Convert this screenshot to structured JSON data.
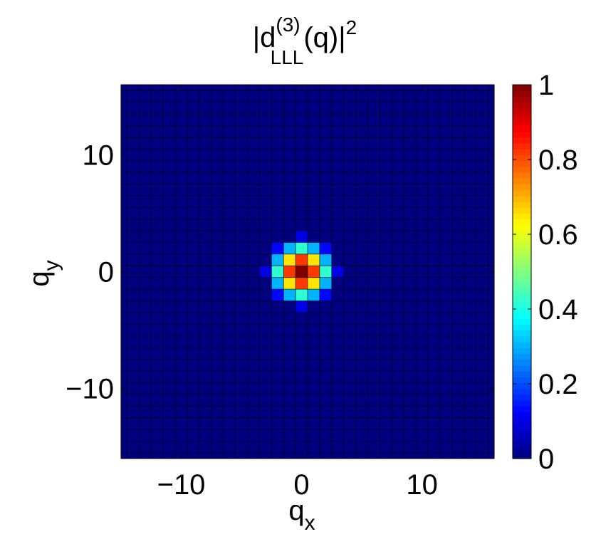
{
  "chart_data": {
    "type": "heatmap",
    "title": "|d^(3)_LLL(q)|^2",
    "title_parts": {
      "lead": "|d",
      "superscript": "(3)",
      "subscript": "LLL",
      "middle": "(q)|",
      "power": "2"
    },
    "xlabel": {
      "base": "q",
      "sub": "x"
    },
    "ylabel": {
      "base": "q",
      "sub": "y"
    },
    "xlim": [
      -15,
      16
    ],
    "ylim": [
      -16,
      16
    ],
    "xticks": [
      -10,
      0,
      10
    ],
    "xtick_labels": [
      "−10",
      "0",
      "10"
    ],
    "yticks": [
      -10,
      0,
      10
    ],
    "ytick_labels": [
      "−10",
      "0",
      "10"
    ],
    "colormap": "jet",
    "clim": [
      0,
      1
    ],
    "colorbar_ticks": [
      0,
      0.2,
      0.4,
      0.6,
      0.8,
      1
    ],
    "colorbar_tick_labels": [
      "0",
      "0.2",
      "0.4",
      "0.6",
      "0.8",
      "1"
    ],
    "grid_step": 1,
    "background_value": 0,
    "cells": [
      {
        "qx": 0,
        "qy": 0,
        "v": 1.0
      },
      {
        "qx": 0,
        "qy": 1,
        "v": 0.82
      },
      {
        "qx": 1,
        "qy": 0,
        "v": 0.82
      },
      {
        "qx": -1,
        "qy": 0,
        "v": 0.82
      },
      {
        "qx": 0,
        "qy": -1,
        "v": 0.82
      },
      {
        "qx": 1,
        "qy": 1,
        "v": 0.65
      },
      {
        "qx": -1,
        "qy": 1,
        "v": 0.65
      },
      {
        "qx": 1,
        "qy": -1,
        "v": 0.65
      },
      {
        "qx": -1,
        "qy": -1,
        "v": 0.65
      },
      {
        "qx": 0,
        "qy": 2,
        "v": 0.42
      },
      {
        "qx": 2,
        "qy": 0,
        "v": 0.42
      },
      {
        "qx": -2,
        "qy": 0,
        "v": 0.42
      },
      {
        "qx": 0,
        "qy": -2,
        "v": 0.42
      },
      {
        "qx": 1,
        "qy": 2,
        "v": 0.3
      },
      {
        "qx": -1,
        "qy": 2,
        "v": 0.3
      },
      {
        "qx": 2,
        "qy": 1,
        "v": 0.3
      },
      {
        "qx": -2,
        "qy": 1,
        "v": 0.3
      },
      {
        "qx": 2,
        "qy": -1,
        "v": 0.3
      },
      {
        "qx": -2,
        "qy": -1,
        "v": 0.3
      },
      {
        "qx": 1,
        "qy": -2,
        "v": 0.3
      },
      {
        "qx": -1,
        "qy": -2,
        "v": 0.3
      },
      {
        "qx": 2,
        "qy": 2,
        "v": 0.13
      },
      {
        "qx": -2,
        "qy": 2,
        "v": 0.13
      },
      {
        "qx": 2,
        "qy": -2,
        "v": 0.13
      },
      {
        "qx": -2,
        "qy": -2,
        "v": 0.13
      },
      {
        "qx": 0,
        "qy": 3,
        "v": 0.1
      },
      {
        "qx": 3,
        "qy": 0,
        "v": 0.1
      },
      {
        "qx": -3,
        "qy": 0,
        "v": 0.1
      },
      {
        "qx": 0,
        "qy": -3,
        "v": 0.1
      }
    ]
  }
}
